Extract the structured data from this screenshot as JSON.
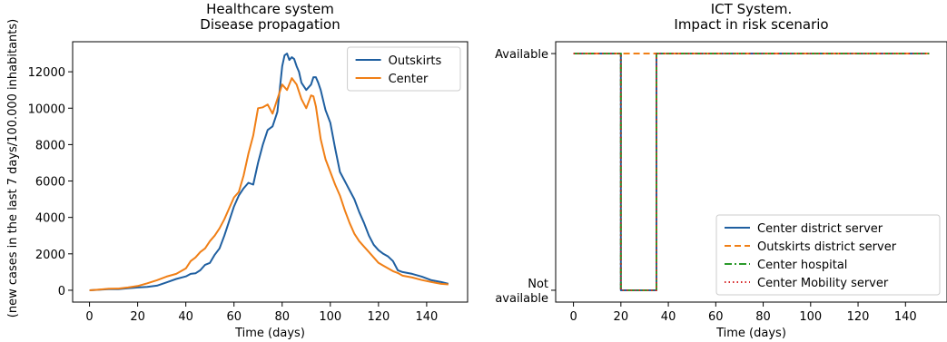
{
  "chart_data": [
    {
      "type": "line",
      "title": "Healthcare system\nDisease propagation",
      "xlabel": "Time (days)",
      "ylabel": "(new cases in the last 7 days/100.000 inhabitants)",
      "xlim": [
        -7,
        157
      ],
      "ylim": [
        -650,
        13650
      ],
      "xticks": [
        0,
        20,
        40,
        60,
        80,
        100,
        120,
        140
      ],
      "yticks": [
        0,
        2000,
        4000,
        6000,
        8000,
        10000,
        12000
      ],
      "grid": false,
      "legend_position": "upper right",
      "series": [
        {
          "name": "Outskirts",
          "color": "#1f5fa0",
          "x": [
            0,
            4,
            8,
            12,
            16,
            20,
            24,
            28,
            32,
            36,
            40,
            42,
            44,
            46,
            48,
            50,
            52,
            54,
            56,
            58,
            60,
            62,
            64,
            66,
            68,
            70,
            72,
            74,
            76,
            78,
            80,
            81,
            82,
            83,
            84,
            85,
            86,
            87,
            88,
            90,
            92,
            93,
            94,
            95,
            96,
            98,
            100,
            102,
            104,
            106,
            108,
            110,
            112,
            114,
            116,
            118,
            120,
            122,
            124,
            126,
            128,
            130,
            134,
            138,
            142,
            146,
            149
          ],
          "y": [
            0,
            30,
            60,
            60,
            110,
            150,
            180,
            250,
            430,
            620,
            760,
            900,
            930,
            1100,
            1400,
            1500,
            1950,
            2300,
            3000,
            3800,
            4600,
            5200,
            5600,
            5900,
            5800,
            7000,
            8000,
            8800,
            9000,
            9800,
            12300,
            12900,
            13000,
            12650,
            12800,
            12700,
            12300,
            12000,
            11400,
            11000,
            11300,
            11700,
            11700,
            11400,
            11000,
            9900,
            9200,
            7800,
            6500,
            6000,
            5500,
            5000,
            4300,
            3700,
            3000,
            2500,
            2200,
            2000,
            1850,
            1600,
            1100,
            1000,
            900,
            750,
            550,
            450,
            350
          ]
        },
        {
          "name": "Center",
          "color": "#f07f16",
          "x": [
            0,
            4,
            8,
            12,
            16,
            20,
            24,
            28,
            32,
            36,
            40,
            42,
            44,
            46,
            48,
            50,
            52,
            54,
            56,
            58,
            60,
            62,
            64,
            66,
            68,
            70,
            72,
            74,
            76,
            78,
            80,
            82,
            84,
            86,
            88,
            90,
            92,
            93,
            94,
            96,
            98,
            100,
            102,
            104,
            106,
            108,
            110,
            112,
            114,
            116,
            118,
            120,
            122,
            124,
            126,
            128,
            130,
            134,
            138,
            142,
            146,
            149
          ],
          "y": [
            0,
            40,
            80,
            90,
            150,
            230,
            380,
            550,
            750,
            900,
            1200,
            1600,
            1800,
            2100,
            2300,
            2700,
            3000,
            3400,
            3900,
            4500,
            5100,
            5400,
            6300,
            7500,
            8500,
            10000,
            10050,
            10200,
            9700,
            10500,
            11300,
            11000,
            11650,
            11300,
            10500,
            10000,
            10700,
            10650,
            10100,
            8300,
            7200,
            6500,
            5800,
            5200,
            4400,
            3700,
            3100,
            2700,
            2400,
            2100,
            1800,
            1500,
            1350,
            1200,
            1050,
            950,
            800,
            700,
            560,
            450,
            350,
            320
          ]
        }
      ]
    },
    {
      "type": "line",
      "title": "ICT System.\nImpact in risk scenario",
      "xlabel": "Time (days)",
      "ylabel": "",
      "xlim": [
        -7.5,
        157.5
      ],
      "ylim": [
        -0.05,
        1.05
      ],
      "xticks": [
        0,
        20,
        40,
        60,
        80,
        100,
        120,
        140
      ],
      "yticks": [
        0,
        1
      ],
      "ytick_labels": [
        "Not\navailable",
        "Available"
      ],
      "grid": false,
      "legend_position": "lower right",
      "series": [
        {
          "name": "Center district server",
          "color": "#1f5fa0",
          "dash": "solid",
          "x": [
            0,
            20,
            20,
            35,
            35,
            150
          ],
          "y": [
            1,
            1,
            0,
            0,
            1,
            1
          ]
        },
        {
          "name": "Outskirts district server",
          "color": "#f07f16",
          "dash": "dashed",
          "x": [
            0,
            150
          ],
          "y": [
            1,
            1
          ]
        },
        {
          "name": "Center hospital",
          "color": "#2a9a2a",
          "dash": "dashdot",
          "x": [
            0,
            20,
            20,
            35,
            35,
            150
          ],
          "y": [
            1,
            1,
            0,
            0,
            1,
            1
          ]
        },
        {
          "name": "Center Mobility server",
          "color": "#d62728",
          "dash": "dotted",
          "x": [
            0,
            20,
            20,
            35,
            35,
            150
          ],
          "y": [
            1,
            1,
            0,
            0,
            1,
            1
          ]
        }
      ]
    }
  ]
}
